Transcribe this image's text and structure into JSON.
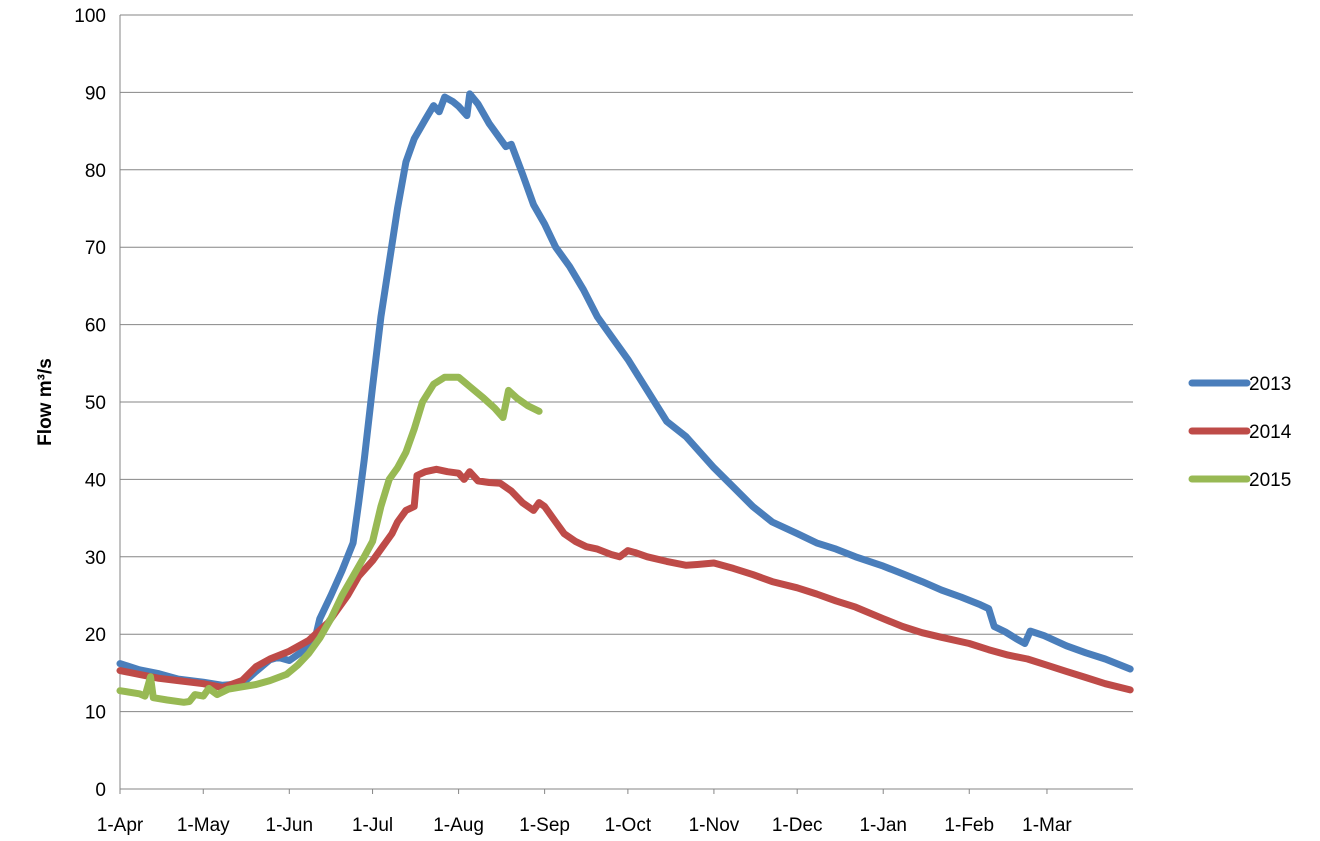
{
  "chart_data": {
    "type": "line",
    "title": "",
    "xlabel": "",
    "ylabel": "Flow m³/s",
    "ylim": [
      0,
      100
    ],
    "yticks": [
      "0",
      "10",
      "20",
      "30",
      "40",
      "50",
      "60",
      "70",
      "80",
      "90",
      "100"
    ],
    "xticks": [
      "1-Apr",
      "1-May",
      "1-Jun",
      "1-Jul",
      "1-Aug",
      "1-Sep",
      "1-Oct",
      "1-Nov",
      "1-Dec",
      "1-Jan",
      "1-Feb",
      "1-Mar"
    ],
    "grid": "horizontal",
    "legend_position": "right",
    "series": [
      {
        "name": "2013",
        "color": "#4a7ebb",
        "points": [
          [
            "1-Apr",
            16.2
          ],
          [
            "8-Apr",
            15.4
          ],
          [
            "15-Apr",
            14.9
          ],
          [
            "22-Apr",
            14.2
          ],
          [
            "1-May",
            13.8
          ],
          [
            "8-May",
            13.4
          ],
          [
            "15-May",
            13.6
          ],
          [
            "20-May",
            15.2
          ],
          [
            "25-May",
            16.7
          ],
          [
            "28-May",
            17.0
          ],
          [
            "1-Jun",
            16.6
          ],
          [
            "5-Jun",
            17.6
          ],
          [
            "10-Jun",
            19.0
          ],
          [
            "12-Jun",
            22.0
          ],
          [
            "16-Jun",
            25.0
          ],
          [
            "20-Jun",
            28.2
          ],
          [
            "24-Jun",
            31.8
          ],
          [
            "26-Jun",
            37.0
          ],
          [
            "28-Jun",
            42.5
          ],
          [
            "1-Jul",
            52.0
          ],
          [
            "4-Jul",
            61.0
          ],
          [
            "7-Jul",
            68.0
          ],
          [
            "10-Jul",
            75.0
          ],
          [
            "13-Jul",
            81.0
          ],
          [
            "16-Jul",
            84.0
          ],
          [
            "20-Jul",
            86.5
          ],
          [
            "23-Jul",
            88.3
          ],
          [
            "25-Jul",
            87.5
          ],
          [
            "27-Jul",
            89.4
          ],
          [
            "30-Jul",
            88.8
          ],
          [
            "1-Aug",
            88.2
          ],
          [
            "4-Aug",
            87.0
          ],
          [
            "5-Aug",
            89.8
          ],
          [
            "8-Aug",
            88.5
          ],
          [
            "12-Aug",
            86.0
          ],
          [
            "16-Aug",
            84.0
          ],
          [
            "18-Aug",
            83.0
          ],
          [
            "20-Aug",
            83.3
          ],
          [
            "24-Aug",
            79.5
          ],
          [
            "28-Aug",
            75.5
          ],
          [
            "1-Sep",
            73.0
          ],
          [
            "5-Sep",
            70.0
          ],
          [
            "10-Sep",
            67.5
          ],
          [
            "15-Sep",
            64.5
          ],
          [
            "20-Sep",
            61.0
          ],
          [
            "25-Sep",
            58.5
          ],
          [
            "1-Oct",
            55.5
          ],
          [
            "8-Oct",
            51.5
          ],
          [
            "15-Oct",
            47.5
          ],
          [
            "22-Oct",
            45.5
          ],
          [
            "1-Nov",
            41.5
          ],
          [
            "8-Nov",
            39.0
          ],
          [
            "15-Nov",
            36.5
          ],
          [
            "22-Nov",
            34.5
          ],
          [
            "1-Dec",
            33.0
          ],
          [
            "8-Dec",
            31.8
          ],
          [
            "15-Dec",
            31.0
          ],
          [
            "22-Dec",
            30.0
          ],
          [
            "1-Jan",
            28.8
          ],
          [
            "8-Jan",
            27.8
          ],
          [
            "15-Jan",
            26.8
          ],
          [
            "22-Jan",
            25.7
          ],
          [
            "29-Jan",
            24.8
          ],
          [
            "5-Feb",
            23.8
          ],
          [
            "8-Feb",
            23.3
          ],
          [
            "10-Feb",
            21.0
          ],
          [
            "14-Feb",
            20.3
          ],
          [
            "18-Feb",
            19.4
          ],
          [
            "21-Feb",
            18.8
          ],
          [
            "23-Feb",
            20.4
          ],
          [
            "28-Feb",
            19.8
          ],
          [
            "8-Mar",
            18.5
          ],
          [
            "15-Mar",
            17.6
          ],
          [
            "22-Mar",
            16.8
          ],
          [
            "31-Mar",
            15.5
          ]
        ]
      },
      {
        "name": "2014",
        "color": "#be4b48",
        "points": [
          [
            "1-Apr",
            15.3
          ],
          [
            "8-Apr",
            14.8
          ],
          [
            "15-Apr",
            14.3
          ],
          [
            "22-Apr",
            14.0
          ],
          [
            "1-May",
            13.6
          ],
          [
            "8-May",
            13.1
          ],
          [
            "15-May",
            14.0
          ],
          [
            "20-May",
            15.8
          ],
          [
            "25-May",
            16.8
          ],
          [
            "1-Jun",
            17.8
          ],
          [
            "8-Jun",
            19.2
          ],
          [
            "15-Jun",
            21.5
          ],
          [
            "22-Jun",
            25.0
          ],
          [
            "26-Jun",
            27.5
          ],
          [
            "1-Jul",
            29.5
          ],
          [
            "5-Jul",
            31.5
          ],
          [
            "8-Jul",
            33.0
          ],
          [
            "10-Jul",
            34.5
          ],
          [
            "13-Jul",
            36.0
          ],
          [
            "16-Jul",
            36.5
          ],
          [
            "17-Jul",
            40.5
          ],
          [
            "20-Jul",
            41.0
          ],
          [
            "24-Jul",
            41.3
          ],
          [
            "28-Jul",
            41.0
          ],
          [
            "1-Aug",
            40.8
          ],
          [
            "3-Aug",
            40.0
          ],
          [
            "5-Aug",
            41.0
          ],
          [
            "8-Aug",
            39.8
          ],
          [
            "12-Aug",
            39.6
          ],
          [
            "16-Aug",
            39.5
          ],
          [
            "20-Aug",
            38.5
          ],
          [
            "24-Aug",
            37.0
          ],
          [
            "28-Aug",
            36.0
          ],
          [
            "30-Aug",
            37.0
          ],
          [
            "1-Sep",
            36.5
          ],
          [
            "5-Sep",
            34.5
          ],
          [
            "8-Sep",
            33.0
          ],
          [
            "12-Sep",
            32.0
          ],
          [
            "16-Sep",
            31.3
          ],
          [
            "20-Sep",
            31.0
          ],
          [
            "25-Sep",
            30.3
          ],
          [
            "28-Sep",
            30.0
          ],
          [
            "1-Oct",
            30.8
          ],
          [
            "4-Oct",
            30.5
          ],
          [
            "8-Oct",
            30.0
          ],
          [
            "15-Oct",
            29.4
          ],
          [
            "22-Oct",
            28.9
          ],
          [
            "26-Oct",
            29.0
          ],
          [
            "1-Nov",
            29.2
          ],
          [
            "8-Nov",
            28.5
          ],
          [
            "15-Nov",
            27.7
          ],
          [
            "22-Nov",
            26.8
          ],
          [
            "1-Dec",
            26.0
          ],
          [
            "8-Dec",
            25.2
          ],
          [
            "15-Dec",
            24.3
          ],
          [
            "22-Dec",
            23.5
          ],
          [
            "1-Jan",
            22.0
          ],
          [
            "8-Jan",
            21.0
          ],
          [
            "15-Jan",
            20.2
          ],
          [
            "22-Jan",
            19.6
          ],
          [
            "1-Feb",
            18.8
          ],
          [
            "8-Feb",
            18.0
          ],
          [
            "15-Feb",
            17.3
          ],
          [
            "22-Feb",
            16.8
          ],
          [
            "1-Mar",
            16.0
          ],
          [
            "8-Mar",
            15.2
          ],
          [
            "15-Mar",
            14.4
          ],
          [
            "22-Mar",
            13.6
          ],
          [
            "31-Mar",
            12.8
          ]
        ]
      },
      {
        "name": "2015",
        "color": "#98b954",
        "points": [
          [
            "1-Apr",
            12.7
          ],
          [
            "8-Apr",
            12.3
          ],
          [
            "10-Apr",
            12.0
          ],
          [
            "12-Apr",
            14.5
          ],
          [
            "13-Apr",
            11.8
          ],
          [
            "18-Apr",
            11.5
          ],
          [
            "24-Apr",
            11.2
          ],
          [
            "26-Apr",
            11.3
          ],
          [
            "28-Apr",
            12.2
          ],
          [
            "1-May",
            12.0
          ],
          [
            "3-May",
            13.0
          ],
          [
            "6-May",
            12.2
          ],
          [
            "10-May",
            12.9
          ],
          [
            "15-May",
            13.2
          ],
          [
            "20-May",
            13.5
          ],
          [
            "25-May",
            14.0
          ],
          [
            "31-May",
            14.8
          ],
          [
            "4-Jun",
            16.0
          ],
          [
            "8-Jun",
            17.5
          ],
          [
            "12-Jun",
            19.5
          ],
          [
            "16-Jun",
            22.0
          ],
          [
            "20-Jun",
            25.0
          ],
          [
            "24-Jun",
            27.5
          ],
          [
            "28-Jun",
            30.0
          ],
          [
            "1-Jul",
            32.0
          ],
          [
            "4-Jul",
            36.5
          ],
          [
            "7-Jul",
            40.0
          ],
          [
            "10-Jul",
            41.5
          ],
          [
            "13-Jul",
            43.5
          ],
          [
            "16-Jul",
            46.5
          ],
          [
            "19-Jul",
            50.0
          ],
          [
            "23-Jul",
            52.3
          ],
          [
            "27-Jul",
            53.2
          ],
          [
            "1-Aug",
            53.2
          ],
          [
            "5-Aug",
            52.0
          ],
          [
            "10-Aug",
            50.5
          ],
          [
            "14-Aug",
            49.2
          ],
          [
            "17-Aug",
            48.0
          ],
          [
            "19-Aug",
            51.5
          ],
          [
            "22-Aug",
            50.5
          ],
          [
            "26-Aug",
            49.5
          ],
          [
            "30-Aug",
            48.8
          ]
        ]
      }
    ]
  }
}
